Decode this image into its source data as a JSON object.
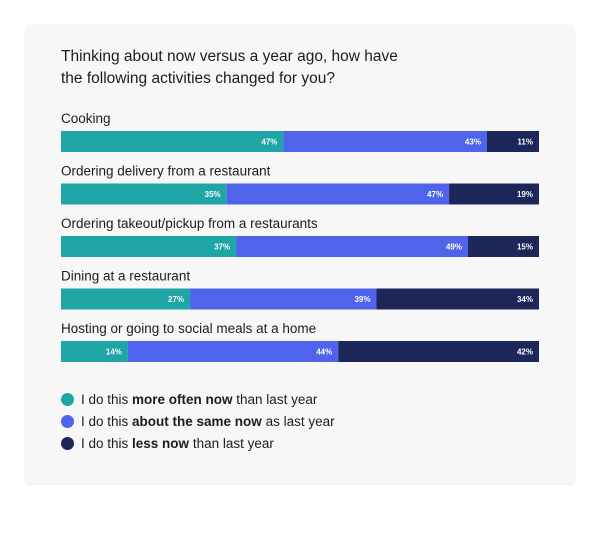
{
  "chart_data": {
    "type": "bar",
    "orientation": "horizontal",
    "stacked": true,
    "title_lines": [
      "Thinking about now versus a year ago, how have",
      "the following activities changed for you?"
    ],
    "categories": [
      "Cooking",
      "Ordering delivery from a restaurant",
      "Ordering takeout/pickup from a restaurants",
      "Dining at a restaurant",
      "Hosting or going to social meals at a home"
    ],
    "series": [
      {
        "name": "more often now",
        "color": "#1fa5a6",
        "values": [
          47,
          35,
          37,
          27,
          14
        ]
      },
      {
        "name": "about the same now",
        "color": "#5064eb",
        "values": [
          43,
          47,
          49,
          39,
          44
        ]
      },
      {
        "name": "less now",
        "color": "#1c2659",
        "values": [
          11,
          19,
          15,
          34,
          42
        ]
      }
    ],
    "value_suffix": "%",
    "legend_position": "bottom-left"
  },
  "legend": [
    {
      "pre": "I do this ",
      "bold": "more often now",
      "post": " than last year",
      "color": "#1fa5a6"
    },
    {
      "pre": "I do this ",
      "bold": "about the same now",
      "post": " as last year",
      "color": "#5064eb"
    },
    {
      "pre": "I do this ",
      "bold": "less now",
      "post": " than last year",
      "color": "#1c2659"
    }
  ]
}
